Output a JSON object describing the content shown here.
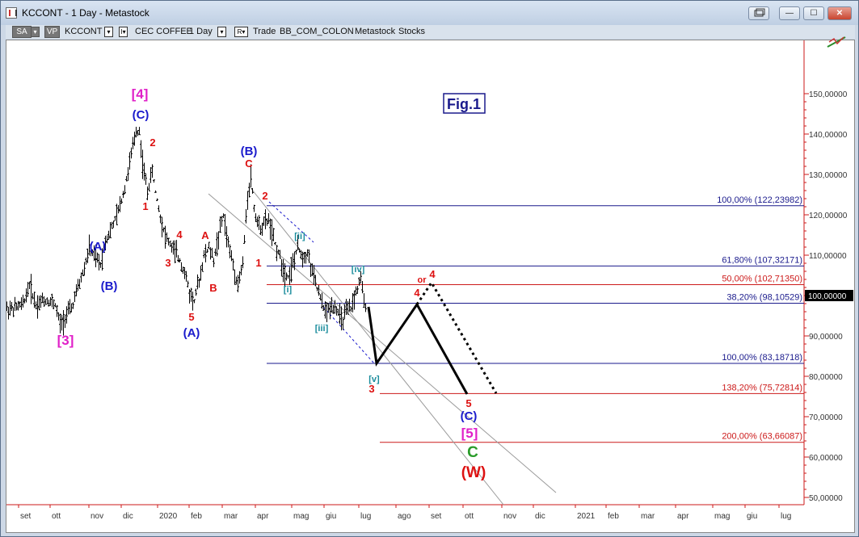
{
  "window": {
    "title": "KCCONT - 1 Day - Metastock",
    "restore_icon": "restore-icon",
    "minimize_label": "—",
    "maximize_label": "☐",
    "close_label": "✕"
  },
  "toolbar": {
    "sa_label": "SA",
    "vp_label": "VP",
    "symbol": "KCCONT",
    "symbol_desc": "CEC COFFEE",
    "period": "1 Day",
    "mode": "Trade",
    "source": "BB_COM_COLON",
    "app": "Metastock",
    "type": "Stocks"
  },
  "figure_label": "Fig.1",
  "current_price_label": "100,00000",
  "colors": {
    "bar": "#000000",
    "fib_blue": "#1a1a8c",
    "fib_red": "#cc1a1a",
    "axis_red": "#cc1a1a",
    "wave_red": "#dd1111",
    "wave_blue": "#1a1acc",
    "wave_magenta": "#e020c8",
    "wave_teal": "#1a8c9c",
    "wave_green": "#2a9c2a"
  },
  "chart_data": {
    "type": "bar",
    "y_axis_labels": [
      "150,00000",
      "140,00000",
      "130,00000",
      "120,00000",
      "110,00000",
      "100,00000",
      "90,00000",
      "80,00000",
      "70,00000",
      "60,00000",
      "50,00000"
    ],
    "ylim": [
      47,
      162
    ],
    "x_axis_labels": [
      "set",
      "ott",
      "nov",
      "dic",
      "2020",
      "feb",
      "mar",
      "apr",
      "mag",
      "giu",
      "lug",
      "ago",
      "set",
      "ott",
      "nov",
      "dic",
      "2021",
      "feb",
      "mar",
      "apr",
      "mag",
      "giu",
      "lug"
    ],
    "price_path": [
      [
        0,
        97
      ],
      [
        8,
        97
      ],
      [
        20,
        98
      ],
      [
        28,
        103
      ],
      [
        36,
        98
      ],
      [
        44,
        99
      ],
      [
        52,
        99
      ],
      [
        60,
        98
      ],
      [
        66,
        93
      ],
      [
        72,
        95
      ],
      [
        80,
        97
      ],
      [
        88,
        102
      ],
      [
        96,
        107
      ],
      [
        102,
        112
      ],
      [
        108,
        110
      ],
      [
        116,
        108
      ],
      [
        122,
        114
      ],
      [
        130,
        117
      ],
      [
        138,
        121
      ],
      [
        146,
        127
      ],
      [
        154,
        135
      ],
      [
        160,
        141
      ],
      [
        164,
        141
      ],
      [
        168,
        133
      ],
      [
        174,
        126
      ],
      [
        180,
        131
      ],
      [
        184,
        126
      ],
      [
        190,
        120
      ],
      [
        196,
        115
      ],
      [
        202,
        113
      ],
      [
        208,
        111
      ],
      [
        214,
        109
      ],
      [
        220,
        106
      ],
      [
        226,
        101
      ],
      [
        232,
        99
      ],
      [
        238,
        104
      ],
      [
        244,
        110
      ],
      [
        250,
        112
      ],
      [
        256,
        109
      ],
      [
        262,
        115
      ],
      [
        268,
        120
      ],
      [
        274,
        113
      ],
      [
        280,
        108
      ],
      [
        286,
        103
      ],
      [
        292,
        108
      ],
      [
        298,
        125
      ],
      [
        302,
        130
      ],
      [
        306,
        122
      ],
      [
        312,
        117
      ],
      [
        318,
        118
      ],
      [
        324,
        119
      ],
      [
        330,
        114
      ],
      [
        336,
        111
      ],
      [
        342,
        107
      ],
      [
        348,
        105
      ],
      [
        354,
        108
      ],
      [
        360,
        112
      ],
      [
        366,
        110
      ],
      [
        372,
        111
      ],
      [
        378,
        106
      ],
      [
        384,
        102
      ],
      [
        390,
        98
      ],
      [
        396,
        96
      ],
      [
        402,
        98
      ],
      [
        408,
        97
      ],
      [
        414,
        94
      ],
      [
        420,
        96
      ],
      [
        426,
        97
      ],
      [
        432,
        101
      ],
      [
        438,
        104
      ],
      [
        442,
        99
      ],
      [
        446,
        97
      ]
    ],
    "fib_levels": [
      {
        "label": "100,00% (122,23982)",
        "value": 122.24,
        "color": "blue"
      },
      {
        "label": "61,80% (107,32171)",
        "value": 107.32,
        "color": "blue"
      },
      {
        "label": "50,00% (102,71350)",
        "value": 102.71,
        "color": "red"
      },
      {
        "label": "38,20% (98,10529)",
        "value": 98.11,
        "color": "blue"
      },
      {
        "label": "100,00% (83,18718)",
        "value": 83.19,
        "color": "blue"
      },
      {
        "label": "138,20% (75,72814)",
        "value": 75.73,
        "color": "red"
      },
      {
        "label": "200,00% (63,66087)",
        "value": 63.66,
        "color": "red"
      }
    ],
    "wave_labels": [
      {
        "text": "[4]",
        "color": "wave_magenta",
        "size": 17
      },
      {
        "text": "(C)",
        "color": "wave_blue",
        "size": 15
      },
      {
        "text": "2",
        "color": "wave_red",
        "size": 13
      },
      {
        "text": "1",
        "color": "wave_red",
        "size": 13
      },
      {
        "text": "(B)",
        "color": "wave_blue",
        "size": 15
      },
      {
        "text": "C",
        "color": "wave_red",
        "size": 13
      },
      {
        "text": "2",
        "color": "wave_red",
        "size": 13
      },
      {
        "text": "(A)",
        "color": "wave_blue",
        "size": 15
      },
      {
        "text": "(B)",
        "color": "wave_blue",
        "size": 15
      },
      {
        "text": "4",
        "color": "wave_red",
        "size": 13
      },
      {
        "text": "3",
        "color": "wave_red",
        "size": 13
      },
      {
        "text": "A",
        "color": "wave_red",
        "size": 13
      },
      {
        "text": "B",
        "color": "wave_red",
        "size": 13
      },
      {
        "text": "1",
        "color": "wave_red",
        "size": 13
      },
      {
        "text": "5",
        "color": "wave_red",
        "size": 13
      },
      {
        "text": "(A)",
        "color": "wave_blue",
        "size": 15
      },
      {
        "text": "[3]",
        "color": "wave_magenta",
        "size": 17
      },
      {
        "text": "[ii]",
        "color": "wave_teal",
        "size": 11
      },
      {
        "text": "[i]",
        "color": "wave_teal",
        "size": 11
      },
      {
        "text": "[iii]",
        "color": "wave_teal",
        "size": 11
      },
      {
        "text": "[iv]",
        "color": "wave_teal",
        "size": 11
      },
      {
        "text": "[v]",
        "color": "wave_teal",
        "size": 11
      },
      {
        "text": "3",
        "color": "wave_red",
        "size": 13
      },
      {
        "text": "4",
        "color": "wave_red",
        "size": 13
      },
      {
        "text": "or",
        "color": "wave_red",
        "size": 11
      },
      {
        "text": "4",
        "color": "wave_red",
        "size": 13
      },
      {
        "text": "5",
        "color": "wave_red",
        "size": 13
      },
      {
        "text": "(C)",
        "color": "wave_blue",
        "size": 15
      },
      {
        "text": "[5]",
        "color": "wave_magenta",
        "size": 17
      },
      {
        "text": "C",
        "color": "wave_green",
        "size": 19
      },
      {
        "text": "(W)",
        "color": "wave_red",
        "size": 19
      }
    ]
  }
}
